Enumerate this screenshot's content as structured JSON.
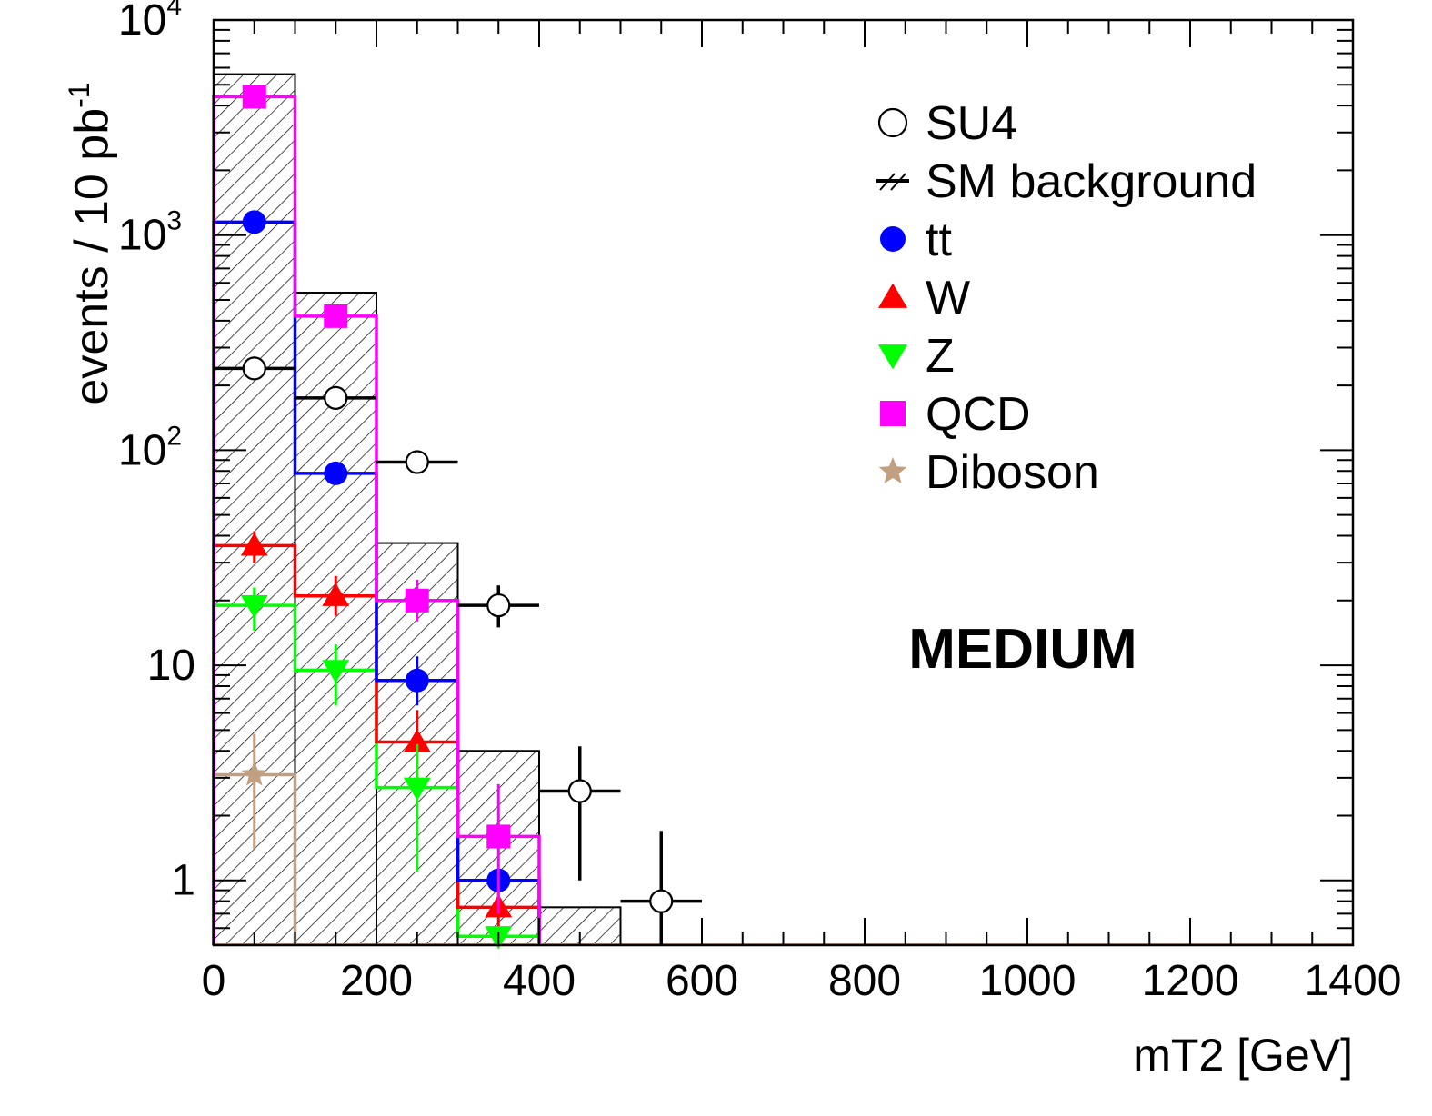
{
  "chart_data": {
    "type": "histogram",
    "title": "",
    "annotation": "MEDIUM",
    "xlabel": "mT2 [GeV]",
    "ylabel": "events / 10 pb",
    "ylabel_sup": "-1",
    "xlim": [
      0,
      1400
    ],
    "ylim": [
      0.5,
      10000
    ],
    "y_scale": "log",
    "grid": false,
    "legend_position": "top-right",
    "x_tick_labels": [
      "0",
      "200",
      "400",
      "600",
      "800",
      "1000",
      "1200",
      "1400"
    ],
    "x_tick_values": [
      0,
      200,
      400,
      600,
      800,
      1000,
      1200,
      1400
    ],
    "y_tick_labels": [
      {
        "base": "1",
        "exp": "",
        "value": 1
      },
      {
        "base": "10",
        "exp": "",
        "value": 10
      },
      {
        "base": "10",
        "exp": "2",
        "value": 100
      },
      {
        "base": "10",
        "exp": "3",
        "value": 1000
      },
      {
        "base": "10",
        "exp": "4",
        "value": 10000
      }
    ],
    "bin_edges": [
      0,
      100,
      200,
      300,
      400,
      500,
      600,
      700,
      800,
      900,
      1000,
      1100,
      1200,
      1300,
      1400
    ],
    "sm_background": {
      "name": "SM background",
      "values": [
        5600,
        540,
        37,
        4,
        0.75,
        0,
        0,
        0,
        0,
        0,
        0,
        0,
        0,
        0
      ]
    },
    "signal": {
      "name": "SU4",
      "points": [
        {
          "x": 50,
          "y": 240,
          "yerr_low": 225,
          "yerr_high": 255
        },
        {
          "x": 150,
          "y": 175,
          "yerr_low": 162,
          "yerr_high": 188
        },
        {
          "x": 250,
          "y": 88,
          "yerr_low": 79,
          "yerr_high": 97
        },
        {
          "x": 350,
          "y": 19,
          "yerr_low": 15,
          "yerr_high": 23.5
        },
        {
          "x": 450,
          "y": 2.6,
          "yerr_low": 1.0,
          "yerr_high": 4.2
        },
        {
          "x": 550,
          "y": 0.8,
          "yerr_low": 0.5,
          "yerr_high": 1.7
        }
      ]
    },
    "series": [
      {
        "name": "tt",
        "color": "#0000ff",
        "marker": "circle",
        "values": [
          1150,
          78,
          8.5,
          1.0,
          0,
          0,
          0,
          0,
          0,
          0,
          0,
          0,
          0,
          0
        ],
        "points": [
          {
            "x": 50,
            "y": 1150,
            "yerr_low": 1100,
            "yerr_high": 1200
          },
          {
            "x": 150,
            "y": 78,
            "yerr_low": 74,
            "yerr_high": 82
          },
          {
            "x": 250,
            "y": 8.5,
            "yerr_low": 6.5,
            "yerr_high": 11
          },
          {
            "x": 350,
            "y": 1.0,
            "yerr_low": 0.9,
            "yerr_high": 1.1
          }
        ]
      },
      {
        "name": "W",
        "color": "#ff0000",
        "marker": "triangle-up",
        "values": [
          36,
          21,
          4.4,
          0.75,
          0,
          0,
          0,
          0,
          0,
          0,
          0,
          0,
          0,
          0
        ],
        "points": [
          {
            "x": 50,
            "y": 36,
            "yerr_low": 30,
            "yerr_high": 42
          },
          {
            "x": 150,
            "y": 21,
            "yerr_low": 17,
            "yerr_high": 26
          },
          {
            "x": 250,
            "y": 4.4,
            "yerr_low": 3.0,
            "yerr_high": 6.2
          },
          {
            "x": 350,
            "y": 0.75,
            "yerr_low": 0.6,
            "yerr_high": 0.9
          }
        ]
      },
      {
        "name": "Z",
        "color": "#00ff00",
        "marker": "triangle-down",
        "values": [
          19,
          9.5,
          2.7,
          0.55,
          0,
          0,
          0,
          0,
          0,
          0,
          0,
          0,
          0,
          0
        ],
        "points": [
          {
            "x": 50,
            "y": 19,
            "yerr_low": 14.5,
            "yerr_high": 23
          },
          {
            "x": 150,
            "y": 9.5,
            "yerr_low": 6.5,
            "yerr_high": 12.5
          },
          {
            "x": 250,
            "y": 2.7,
            "yerr_low": 1.1,
            "yerr_high": 4.3
          },
          {
            "x": 350,
            "y": 0.55,
            "yerr_low": 0.5,
            "yerr_high": 0.6
          }
        ]
      },
      {
        "name": "QCD",
        "color": "#ff00ff",
        "marker": "square",
        "values": [
          4400,
          420,
          20,
          1.6,
          0,
          0,
          0,
          0,
          0,
          0,
          0,
          0,
          0,
          0
        ],
        "points": [
          {
            "x": 50,
            "y": 4400,
            "yerr_low": 4200,
            "yerr_high": 4600
          },
          {
            "x": 150,
            "y": 420,
            "yerr_low": 400,
            "yerr_high": 440
          },
          {
            "x": 250,
            "y": 20,
            "yerr_low": 16,
            "yerr_high": 25
          },
          {
            "x": 350,
            "y": 1.6,
            "yerr_low": 0.7,
            "yerr_high": 2.8
          }
        ]
      },
      {
        "name": "Diboson",
        "color": "#c0a080",
        "marker": "star",
        "values": [
          3.1,
          0,
          0,
          0,
          0,
          0,
          0,
          0,
          0,
          0,
          0,
          0,
          0,
          0
        ],
        "points": [
          {
            "x": 50,
            "y": 3.1,
            "yerr_low": 1.4,
            "yerr_high": 4.8
          }
        ]
      }
    ],
    "legend": [
      {
        "label": "SU4",
        "marker": "open-circle",
        "color": "#000000"
      },
      {
        "label": "SM background",
        "marker": "hatch",
        "color": "#000000"
      },
      {
        "label": "tt",
        "marker": "circle",
        "color": "#0000ff"
      },
      {
        "label": "W",
        "marker": "triangle-up",
        "color": "#ff0000"
      },
      {
        "label": "Z",
        "marker": "triangle-down",
        "color": "#00ff00"
      },
      {
        "label": "QCD",
        "marker": "square",
        "color": "#ff00ff"
      },
      {
        "label": "Diboson",
        "marker": "star",
        "color": "#c0a080"
      }
    ]
  }
}
